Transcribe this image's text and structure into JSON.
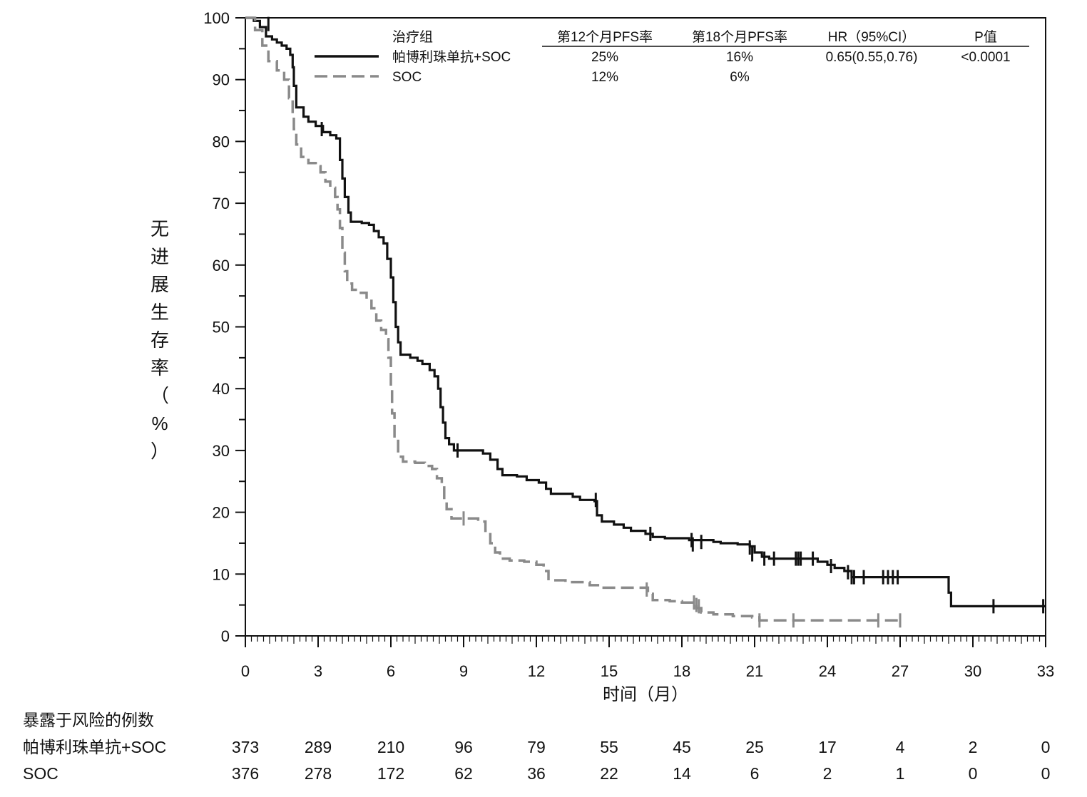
{
  "chart_data": {
    "type": "line",
    "title": "",
    "xlabel": "时间（月）",
    "ylabel_chars": [
      "无",
      "进",
      "展",
      "生",
      "存",
      "率",
      "（",
      "%",
      "）"
    ],
    "xlim": [
      0,
      33
    ],
    "ylim": [
      0,
      100
    ],
    "x_ticks": [
      0,
      3,
      6,
      9,
      12,
      15,
      18,
      21,
      24,
      27,
      30,
      33
    ],
    "y_ticks": [
      0,
      10,
      20,
      30,
      40,
      50,
      60,
      70,
      80,
      90,
      100
    ],
    "legend": {
      "headers": [
        "治疗组",
        "第12个月PFS率",
        "第18个月PFS率",
        "HR（95%CI）",
        "P值"
      ],
      "rows": [
        {
          "name": "帕博利珠单抗+SOC",
          "pfs12": "25%",
          "pfs18": "16%",
          "hr": "0.65(0.55,0.76)",
          "p": "<0.0001"
        },
        {
          "name": "SOC",
          "pfs12": "12%",
          "pfs18": "6%",
          "hr": "",
          "p": ""
        }
      ]
    },
    "series": [
      {
        "name": "帕博利珠单抗+SOC",
        "color": "#111111",
        "style": "solid",
        "steps": [
          [
            0,
            100
          ],
          [
            0.35,
            99.5
          ],
          [
            0.6,
            98.5
          ],
          [
            0.85,
            97
          ],
          [
            1.1,
            96.5
          ],
          [
            1.3,
            96
          ],
          [
            1.5,
            95.5
          ],
          [
            1.7,
            95
          ],
          [
            1.85,
            94
          ],
          [
            1.95,
            92
          ],
          [
            2.0,
            89
          ],
          [
            2.1,
            85.5
          ],
          [
            2.4,
            84
          ],
          [
            2.6,
            83.2
          ],
          [
            2.9,
            82.5
          ],
          [
            3.2,
            81.5
          ],
          [
            3.5,
            81
          ],
          [
            3.75,
            80.5
          ],
          [
            3.9,
            77
          ],
          [
            4.0,
            74
          ],
          [
            4.1,
            71
          ],
          [
            4.25,
            68.5
          ],
          [
            4.35,
            67
          ],
          [
            4.8,
            66.8
          ],
          [
            5.1,
            66.5
          ],
          [
            5.3,
            65.5
          ],
          [
            5.5,
            64.5
          ],
          [
            5.7,
            63.5
          ],
          [
            5.85,
            61
          ],
          [
            6.0,
            58
          ],
          [
            6.1,
            54
          ],
          [
            6.2,
            50
          ],
          [
            6.3,
            47.5
          ],
          [
            6.4,
            45.5
          ],
          [
            6.8,
            45
          ],
          [
            7.1,
            44.5
          ],
          [
            7.3,
            44
          ],
          [
            7.6,
            43
          ],
          [
            7.8,
            42
          ],
          [
            7.95,
            40
          ],
          [
            8.05,
            37
          ],
          [
            8.15,
            34.5
          ],
          [
            8.25,
            32
          ],
          [
            8.4,
            31
          ],
          [
            8.6,
            30
          ],
          [
            9.3,
            30
          ],
          [
            9.8,
            29.5
          ],
          [
            10.1,
            28.5
          ],
          [
            10.4,
            27
          ],
          [
            10.6,
            26
          ],
          [
            11.2,
            25.8
          ],
          [
            11.6,
            25.2
          ],
          [
            12.1,
            24.8
          ],
          [
            12.4,
            23.8
          ],
          [
            12.6,
            23
          ],
          [
            13.5,
            22.5
          ],
          [
            13.8,
            22
          ],
          [
            14.4,
            21.8
          ],
          [
            14.5,
            19.5
          ],
          [
            14.7,
            18.5
          ],
          [
            15.2,
            18
          ],
          [
            15.6,
            17.5
          ],
          [
            15.9,
            17
          ],
          [
            16.5,
            16.5
          ],
          [
            16.8,
            16
          ],
          [
            17.3,
            15.8
          ],
          [
            18.3,
            15.5
          ],
          [
            19.3,
            15.2
          ],
          [
            19.6,
            15
          ],
          [
            20.3,
            14.8
          ],
          [
            20.8,
            14.5
          ],
          [
            21.0,
            13.5
          ],
          [
            21.3,
            12.8
          ],
          [
            21.6,
            12.5
          ],
          [
            23.2,
            12.5
          ],
          [
            23.6,
            12
          ],
          [
            24.0,
            11.5
          ],
          [
            24.3,
            11
          ],
          [
            24.7,
            10.5
          ],
          [
            25.0,
            9.5
          ],
          [
            26.0,
            9.5
          ],
          [
            28.85,
            9.5
          ],
          [
            29.0,
            7
          ],
          [
            29.1,
            4.8
          ],
          [
            33,
            4.8
          ]
        ],
        "censors": [
          [
            0.95,
            99
          ],
          [
            3.15,
            82
          ],
          [
            8.75,
            30
          ],
          [
            14.45,
            22
          ],
          [
            16.7,
            16.5
          ],
          [
            18.4,
            15.5
          ],
          [
            18.45,
            14.8
          ],
          [
            18.8,
            15.2
          ],
          [
            20.8,
            14.3
          ],
          [
            20.9,
            13.2
          ],
          [
            21.4,
            12.5
          ],
          [
            21.8,
            12.5
          ],
          [
            22.7,
            12.5
          ],
          [
            22.8,
            12.5
          ],
          [
            22.9,
            12.5
          ],
          [
            23.4,
            12.5
          ],
          [
            24.15,
            11.3
          ],
          [
            24.85,
            10.3
          ],
          [
            25.0,
            9.5
          ],
          [
            25.1,
            9.5
          ],
          [
            25.5,
            9.5
          ],
          [
            26.3,
            9.5
          ],
          [
            26.5,
            9.5
          ],
          [
            26.7,
            9.5
          ],
          [
            26.9,
            9.5
          ],
          [
            30.85,
            4.8
          ],
          [
            32.9,
            4.8
          ]
        ]
      },
      {
        "name": "SOC",
        "color": "#8a8a8a",
        "style": "dashed",
        "steps": [
          [
            0,
            100
          ],
          [
            0.4,
            98
          ],
          [
            0.7,
            95.5
          ],
          [
            0.95,
            93
          ],
          [
            1.3,
            91.5
          ],
          [
            1.6,
            90
          ],
          [
            1.8,
            87
          ],
          [
            1.95,
            84.5
          ],
          [
            2.0,
            82
          ],
          [
            2.1,
            79.5
          ],
          [
            2.3,
            77.5
          ],
          [
            2.6,
            76.5
          ],
          [
            2.9,
            76
          ],
          [
            3.1,
            75
          ],
          [
            3.3,
            73.5
          ],
          [
            3.5,
            72.5
          ],
          [
            3.7,
            71
          ],
          [
            3.8,
            69
          ],
          [
            3.9,
            66
          ],
          [
            4.0,
            62
          ],
          [
            4.1,
            59
          ],
          [
            4.2,
            57
          ],
          [
            4.4,
            56
          ],
          [
            4.7,
            55.5
          ],
          [
            5.0,
            54.5
          ],
          [
            5.2,
            53
          ],
          [
            5.4,
            51
          ],
          [
            5.6,
            49.5
          ],
          [
            5.8,
            48
          ],
          [
            5.9,
            45
          ],
          [
            6.0,
            40
          ],
          [
            6.05,
            36
          ],
          [
            6.15,
            32
          ],
          [
            6.3,
            29
          ],
          [
            6.5,
            28.2
          ],
          [
            7.0,
            28
          ],
          [
            7.4,
            27.5
          ],
          [
            7.7,
            27
          ],
          [
            7.9,
            25.5
          ],
          [
            8.1,
            24
          ],
          [
            8.2,
            22
          ],
          [
            8.3,
            20.5
          ],
          [
            8.5,
            19
          ],
          [
            9.2,
            19
          ],
          [
            9.6,
            18.5
          ],
          [
            9.9,
            17
          ],
          [
            10.1,
            15
          ],
          [
            10.3,
            13.5
          ],
          [
            10.5,
            12.5
          ],
          [
            10.9,
            12.2
          ],
          [
            11.5,
            12
          ],
          [
            12.0,
            11.5
          ],
          [
            12.3,
            10.5
          ],
          [
            12.5,
            9
          ],
          [
            13.2,
            8.7
          ],
          [
            14.2,
            8.2
          ],
          [
            14.6,
            7.8
          ],
          [
            15.5,
            7.8
          ],
          [
            16.4,
            7.8
          ],
          [
            16.6,
            6.8
          ],
          [
            16.8,
            5.8
          ],
          [
            17.5,
            5.6
          ],
          [
            18.0,
            5.4
          ],
          [
            18.6,
            4.5
          ],
          [
            18.8,
            3.8
          ],
          [
            19.3,
            3.5
          ],
          [
            20.1,
            3.2
          ],
          [
            20.9,
            3.0
          ],
          [
            21.2,
            2.5
          ],
          [
            21.5,
            2.5
          ],
          [
            27,
            2.5
          ]
        ],
        "censors": [
          [
            9.0,
            19
          ],
          [
            16.55,
            7.5
          ],
          [
            18.5,
            5.4
          ],
          [
            18.6,
            5.0
          ],
          [
            18.7,
            4.8
          ],
          [
            21.2,
            2.5
          ],
          [
            22.6,
            2.5
          ],
          [
            26.1,
            2.5
          ],
          [
            27.0,
            2.5
          ]
        ]
      }
    ],
    "risk_table": {
      "title": "暴露于风险的例数",
      "rows": [
        {
          "label": "帕博利珠单抗+SOC",
          "values": [
            373,
            289,
            210,
            96,
            79,
            55,
            45,
            25,
            17,
            4,
            2,
            0
          ]
        },
        {
          "label": "SOC",
          "values": [
            376,
            278,
            172,
            62,
            36,
            22,
            14,
            6,
            2,
            1,
            0,
            0
          ]
        }
      ]
    }
  }
}
